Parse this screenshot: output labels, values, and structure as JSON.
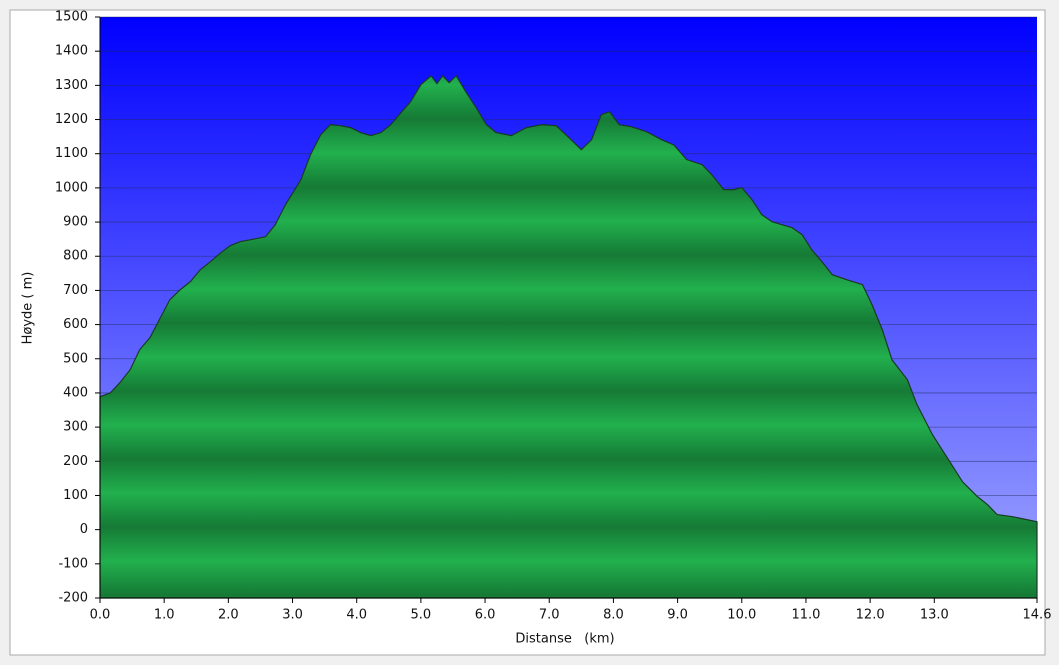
{
  "chart_data": {
    "type": "area",
    "xlabel": "Distanse   (km)",
    "ylabel": "Høyde ( m)",
    "x": [
      0,
      0.16,
      0.31,
      0.47,
      0.62,
      0.78,
      0.94,
      1.09,
      1.25,
      1.41,
      1.56,
      1.72,
      1.88,
      2.03,
      2.19,
      2.34,
      2.58,
      2.73,
      2.89,
      3.13,
      3.28,
      3.44,
      3.59,
      3.75,
      3.91,
      4.06,
      4.22,
      4.38,
      4.53,
      4.69,
      4.84,
      5.0,
      5.16,
      5.25,
      5.34,
      5.44,
      5.55,
      5.7,
      5.86,
      6.02,
      6.17,
      6.41,
      6.64,
      6.88,
      7.11,
      7.34,
      7.5,
      7.66,
      7.81,
      7.94,
      8.09,
      8.28,
      8.52,
      8.75,
      8.94,
      9.14,
      9.38,
      9.53,
      9.72,
      9.88,
      10.0,
      10.16,
      10.31,
      10.47,
      10.63,
      10.78,
      10.94,
      11.09,
      11.25,
      11.41,
      11.64,
      11.88,
      12.03,
      12.19,
      12.34,
      12.58,
      12.73,
      12.97,
      13.2,
      13.44,
      13.67,
      13.83,
      13.98,
      14.22,
      14.45,
      14.6
    ],
    "series": [
      {
        "color": "#1fa84a",
        "values": [
          389,
          400,
          430,
          468,
          527,
          562,
          620,
          673,
          702,
          726,
          760,
          784,
          810,
          831,
          843,
          848,
          857,
          892,
          951,
          1024,
          1097,
          1156,
          1185,
          1182,
          1176,
          1162,
          1153,
          1162,
          1185,
          1220,
          1252,
          1302,
          1328,
          1305,
          1328,
          1308,
          1328,
          1281,
          1235,
          1185,
          1162,
          1153,
          1176,
          1185,
          1182,
          1141,
          1112,
          1141,
          1214,
          1223,
          1185,
          1179,
          1164,
          1141,
          1126,
          1083,
          1068,
          1039,
          995,
          995,
          1001,
          965,
          922,
          901,
          892,
          884,
          863,
          819,
          784,
          746,
          731,
          717,
          658,
          585,
          497,
          439,
          366,
          278,
          211,
          140,
          97,
          73,
          44,
          38,
          29,
          23
        ]
      }
    ],
    "xlim": [
      0,
      14.6
    ],
    "xticks": [
      {
        "value": 0,
        "label": "0.0"
      },
      {
        "value": 1,
        "label": "1.0"
      },
      {
        "value": 2,
        "label": "2.0"
      },
      {
        "value": 3,
        "label": "3.0"
      },
      {
        "value": 4,
        "label": "4.0"
      },
      {
        "value": 5,
        "label": "5.0"
      },
      {
        "value": 6,
        "label": "6.0"
      },
      {
        "value": 7,
        "label": "7.0"
      },
      {
        "value": 8,
        "label": "8.0"
      },
      {
        "value": 9,
        "label": "9.0"
      },
      {
        "value": 10,
        "label": "10.0"
      },
      {
        "value": 11,
        "label": "11.0"
      },
      {
        "value": 12,
        "label": "12.0"
      },
      {
        "value": 13,
        "label": "13.0"
      },
      14.6
    ],
    "ylim": [
      -200,
      1500
    ],
    "yticks": [
      -200,
      -100,
      0,
      100,
      200,
      300,
      400,
      500,
      600,
      700,
      800,
      900,
      1000,
      1100,
      1200,
      1300,
      1400,
      1500
    ],
    "grid": true
  }
}
